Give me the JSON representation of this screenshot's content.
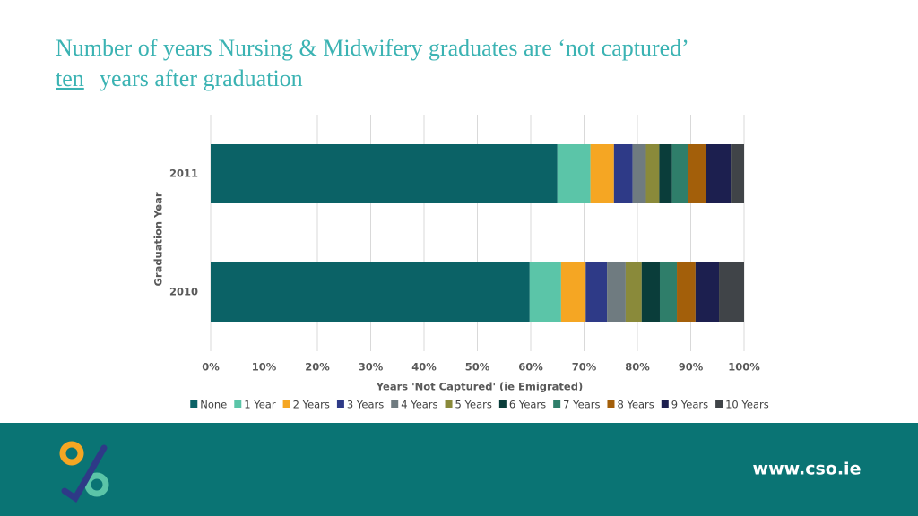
{
  "chart_data": {
    "type": "stacked-barh",
    "title": {
      "line1": "Number of years Nursing & Midwifery graduates are ‘not captured’",
      "emphasis": "ten",
      "rest": "years after graduation"
    },
    "x_label": "Years 'Not Captured' (ie Emigrated)",
    "y_label": "Graduation Year",
    "categories": [
      "2011",
      "2010"
    ],
    "series": [
      {
        "name": "None",
        "color": "#0b6266",
        "values": [
          65.0,
          59.8
        ]
      },
      {
        "name": "1 Year",
        "color": "#5bc5a8",
        "values": [
          6.2,
          5.9
        ]
      },
      {
        "name": "2 Years",
        "color": "#f5a623",
        "values": [
          4.4,
          4.6
        ]
      },
      {
        "name": "3 Years",
        "color": "#2e3a87",
        "values": [
          3.5,
          4.0
        ]
      },
      {
        "name": "4 Years",
        "color": "#6f7b80",
        "values": [
          2.5,
          3.5
        ]
      },
      {
        "name": "5 Years",
        "color": "#8a8a3a",
        "values": [
          2.5,
          3.0
        ]
      },
      {
        "name": "6 Years",
        "color": "#0a3d3a",
        "values": [
          2.4,
          3.4
        ]
      },
      {
        "name": "7 Years",
        "color": "#2f7e6a",
        "values": [
          3.0,
          3.2
        ]
      },
      {
        "name": "8 Years",
        "color": "#a35f0a",
        "values": [
          3.3,
          3.5
        ]
      },
      {
        "name": "9 Years",
        "color": "#1c1f4f",
        "values": [
          4.7,
          4.4
        ]
      },
      {
        "name": "10 Years",
        "color": "#404448",
        "values": [
          2.5,
          4.7
        ]
      }
    ],
    "xlim": [
      0,
      100
    ],
    "xticks": [
      {
        "value": 0,
        "label": "0%"
      },
      {
        "value": 10,
        "label": "10%"
      },
      {
        "value": 20,
        "label": "20%"
      },
      {
        "value": 30,
        "label": "30%"
      },
      {
        "value": 40,
        "label": "40%"
      },
      {
        "value": 50,
        "label": "50%"
      },
      {
        "value": 60,
        "label": "60%"
      },
      {
        "value": 70,
        "label": "70%"
      },
      {
        "value": 80,
        "label": "80%"
      },
      {
        "value": 90,
        "label": "90%"
      },
      {
        "value": 100,
        "label": "100%"
      }
    ],
    "grid": true,
    "legend": "bottom"
  },
  "footer": {
    "url": "www.cso.ie"
  }
}
